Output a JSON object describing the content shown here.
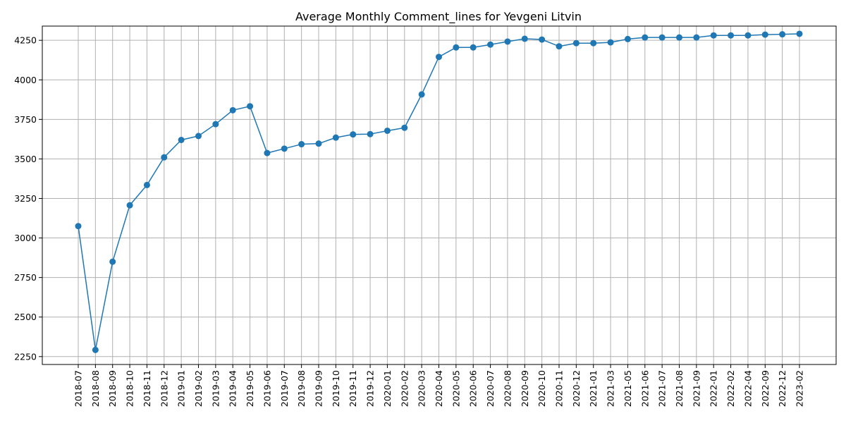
{
  "chart_data": {
    "type": "line",
    "title": "Average Monthly Comment_lines for Yevgeni Litvin",
    "xlabel": "",
    "ylabel": "",
    "ylim": [
      2200,
      4340
    ],
    "yticks": [
      2250,
      2500,
      2750,
      3000,
      3250,
      3500,
      3750,
      4000,
      4250
    ],
    "grid": true,
    "color": "#1f77b4",
    "categories": [
      "2018-07",
      "2018-08",
      "2018-09",
      "2018-10",
      "2018-11",
      "2018-12",
      "2019-01",
      "2019-02",
      "2019-03",
      "2019-04",
      "2019-05",
      "2019-06",
      "2019-07",
      "2019-08",
      "2019-09",
      "2019-10",
      "2019-11",
      "2019-12",
      "2020-01",
      "2020-02",
      "2020-03",
      "2020-04",
      "2020-05",
      "2020-06",
      "2020-07",
      "2020-08",
      "2020-09",
      "2020-10",
      "2020-11",
      "2020-12",
      "2021-01",
      "2021-03",
      "2021-05",
      "2021-06",
      "2021-07",
      "2021-08",
      "2021-09",
      "2022-01",
      "2022-02",
      "2022-04",
      "2022-09",
      "2022-12",
      "2023-02"
    ],
    "values": [
      3075,
      2292,
      2850,
      3207,
      3335,
      3510,
      3620,
      3645,
      3720,
      3808,
      3833,
      3537,
      3565,
      3593,
      3597,
      3635,
      3655,
      3657,
      3678,
      3697,
      3908,
      4145,
      4205,
      4205,
      4223,
      4242,
      4260,
      4255,
      4212,
      4232,
      4232,
      4237,
      4258,
      4268,
      4268,
      4268,
      4268,
      4281,
      4281,
      4281,
      4286,
      4288,
      4291
    ]
  }
}
